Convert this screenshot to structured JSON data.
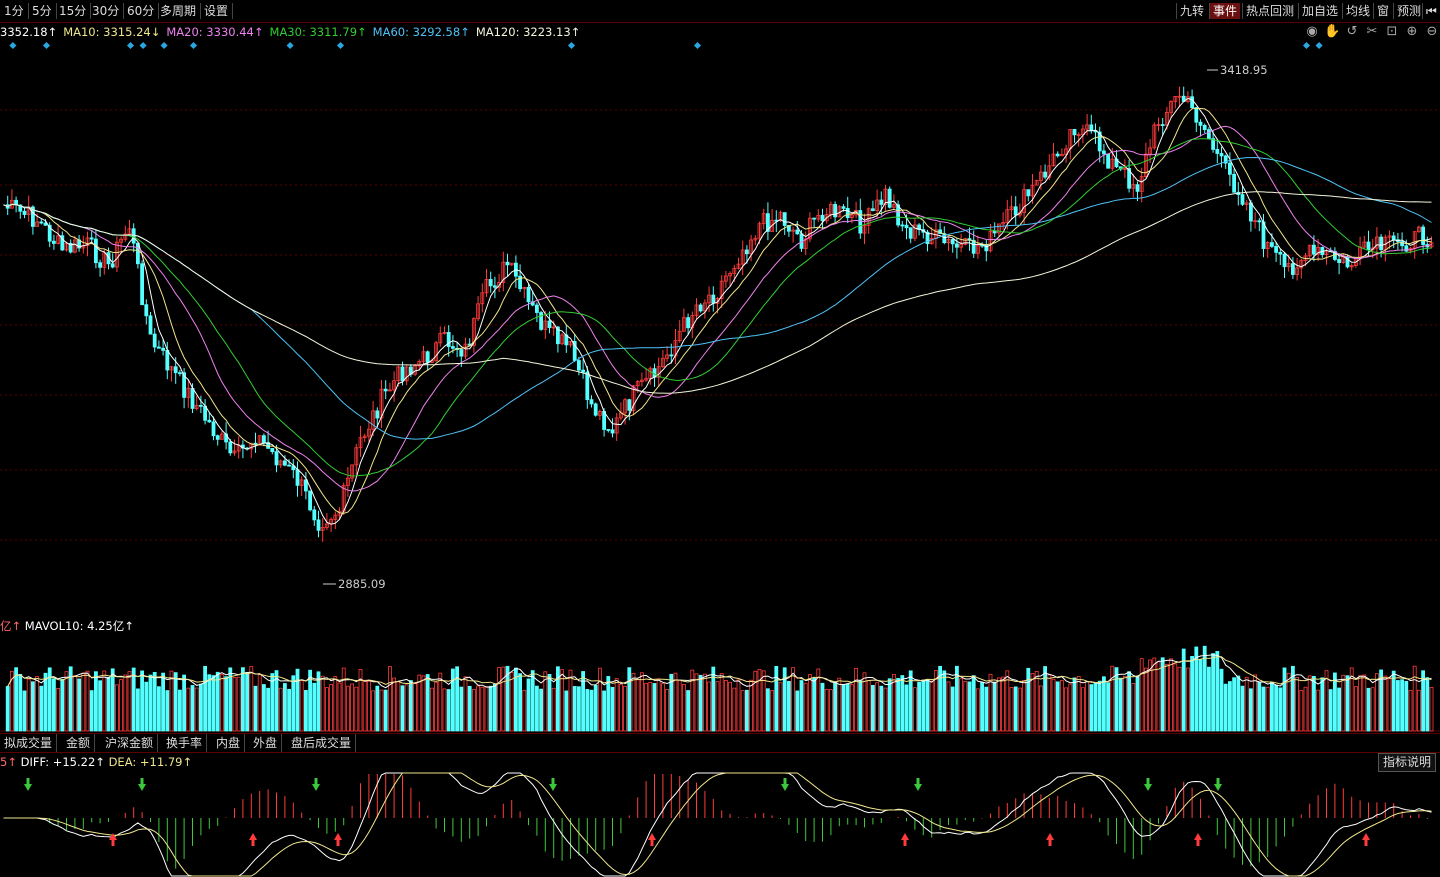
{
  "timeframes": [
    "1分",
    "5分",
    "15分",
    "30分",
    "60分",
    "多周期",
    "设置"
  ],
  "right_buttons": [
    "九转",
    "事件",
    "热点回测",
    "加自选",
    "均线",
    "窗",
    "预测",
    "⏮"
  ],
  "ma_labels": [
    {
      "text": "3352.18↑",
      "color": "#ffffff"
    },
    {
      "text": "MA10: 3315.24↓",
      "color": "#f0e68c"
    },
    {
      "text": "MA20: 3330.44↑",
      "color": "#ee82ee"
    },
    {
      "text": "MA30: 3311.79↑",
      "color": "#32cd32"
    },
    {
      "text": "MA60: 3292.58↑",
      "color": "#4fc3f7"
    },
    {
      "text": "MA120: 3223.13↑",
      "color": "#f5f5dc"
    }
  ],
  "price_high_label": "3418.95",
  "price_low_label": "2885.09",
  "volume_label": {
    "prefix": "亿↑",
    "mavol": "MAVOL10: 4.25亿↑"
  },
  "tabs": [
    "拟成交量",
    "金额",
    "沪深金额",
    "换手率",
    "内盘",
    "外盘",
    "盘后成交量"
  ],
  "macd_label": {
    "prefix": "5↑",
    "diff": "DIFF: +15.22↑",
    "dea": "DEA: +11.79↑"
  },
  "help_button": "指标说明",
  "colors": {
    "up": "#ff3b3b",
    "down": "#54ffff",
    "ma5": "#ffffff",
    "ma10": "#f0e68c",
    "ma20": "#ee82ee",
    "ma30": "#32cd32",
    "ma60": "#4fc3f7",
    "ma120": "#f5f5dc",
    "grid": "#5a0000"
  }
}
